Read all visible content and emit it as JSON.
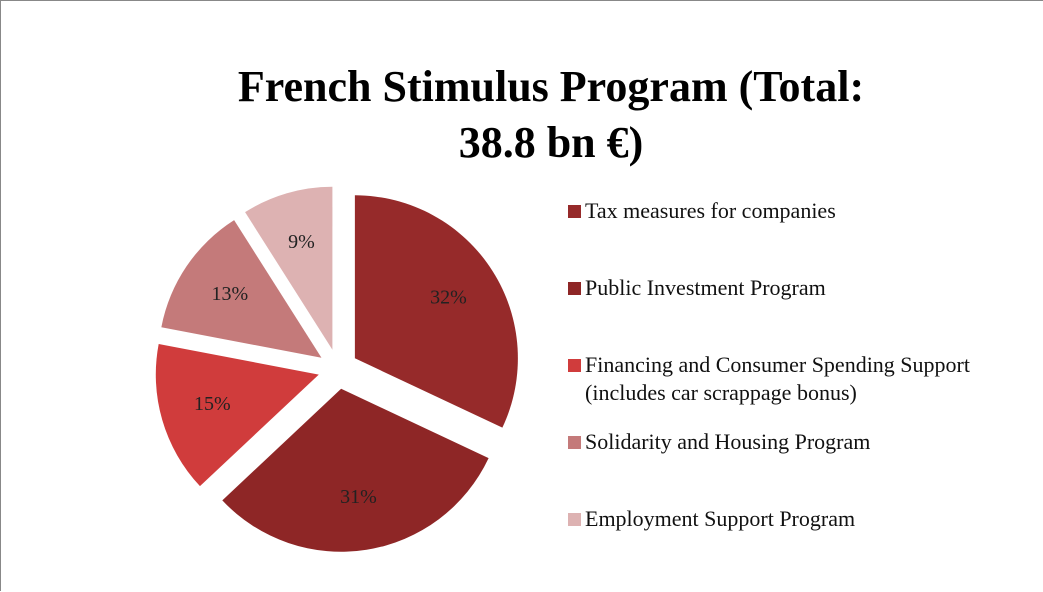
{
  "chart_data": {
    "type": "pie",
    "title": "French Stimulus Program (Total: 38.8 bn €)",
    "categories": [
      "Tax measures for companies",
      "Public Investment Program",
      "Financing and Consumer Spending Support (includes car scrappage bonus)",
      "Solidarity and Housing Program",
      "Employment Support Program"
    ],
    "values": [
      32,
      31,
      15,
      13,
      9
    ],
    "value_labels": [
      "32%",
      "31%",
      "15%",
      "13%",
      "9%"
    ],
    "colors": [
      "#962a2a",
      "#8e2626",
      "#d03c3c",
      "#c47a7a",
      "#ddb2b2"
    ],
    "legend": "right"
  }
}
